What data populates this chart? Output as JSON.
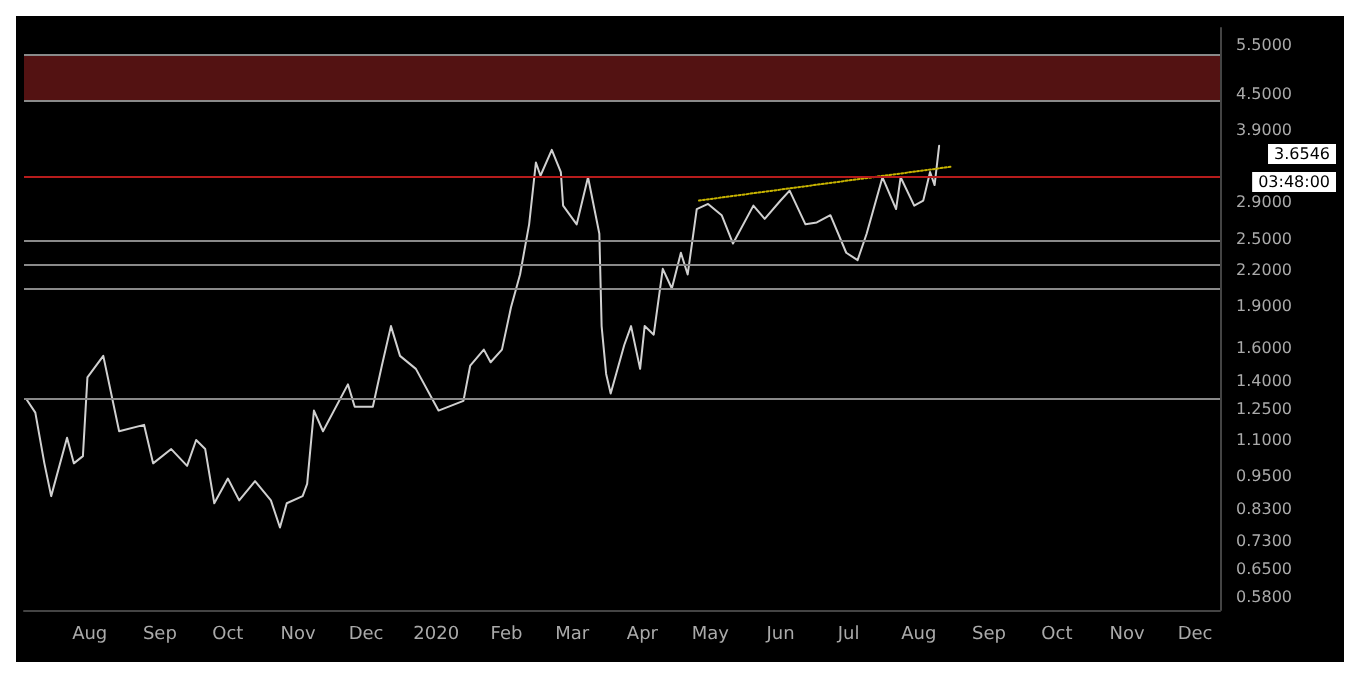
{
  "chart_data": {
    "type": "line",
    "log": "y",
    "grid": false,
    "marker": "none",
    "xlim": [
      "2019-07-03",
      "2020-12-12"
    ],
    "xticks": [
      {
        "value": "2019-08-01",
        "label": "Aug"
      },
      {
        "value": "2019-09-01",
        "label": "Sep"
      },
      {
        "value": "2019-10-01",
        "label": "Oct"
      },
      {
        "value": "2019-11-01",
        "label": "Nov"
      },
      {
        "value": "2019-12-01",
        "label": "Dec"
      },
      {
        "value": "2020-01-01",
        "label": "2020"
      },
      {
        "value": "2020-02-01",
        "label": "Feb"
      },
      {
        "value": "2020-03-01",
        "label": "Mar"
      },
      {
        "value": "2020-04-01",
        "label": "Apr"
      },
      {
        "value": "2020-05-01",
        "label": "May"
      },
      {
        "value": "2020-06-01",
        "label": "Jun"
      },
      {
        "value": "2020-07-01",
        "label": "Jul"
      },
      {
        "value": "2020-08-01",
        "label": "Aug"
      },
      {
        "value": "2020-09-01",
        "label": "Sep"
      },
      {
        "value": "2020-10-01",
        "label": "Oct"
      },
      {
        "value": "2020-11-01",
        "label": "Nov"
      },
      {
        "value": "2020-12-01",
        "label": "Dec"
      }
    ],
    "ylim": [
      0.55,
      5.9
    ],
    "yticks": [
      {
        "value": 0.58,
        "label": "0.5800"
      },
      {
        "value": 0.65,
        "label": "0.6500"
      },
      {
        "value": 0.73,
        "label": "0.7300"
      },
      {
        "value": 0.83,
        "label": "0.8300"
      },
      {
        "value": 0.95,
        "label": "0.9500"
      },
      {
        "value": 1.1,
        "label": "1.1000"
      },
      {
        "value": 1.25,
        "label": "1.2500"
      },
      {
        "value": 1.4,
        "label": "1.4000"
      },
      {
        "value": 1.6,
        "label": "1.6000"
      },
      {
        "value": 1.9,
        "label": "1.9000"
      },
      {
        "value": 2.2,
        "label": "2.2000"
      },
      {
        "value": 2.5,
        "label": "2.5000"
      },
      {
        "value": 2.9,
        "label": "2.9000"
      },
      {
        "value": 3.9,
        "label": "3.9000"
      },
      {
        "value": 4.5,
        "label": "4.5000"
      },
      {
        "value": 5.5,
        "label": "5.5000"
      }
    ],
    "x": [
      "2019-07-04",
      "2019-07-08",
      "2019-07-12",
      "2019-07-15",
      "2019-07-22",
      "2019-07-25",
      "2019-07-29",
      "2019-07-31",
      "2019-08-07",
      "2019-08-14",
      "2019-08-25",
      "2019-08-29",
      "2019-09-06",
      "2019-09-13",
      "2019-09-17",
      "2019-09-21",
      "2019-09-25",
      "2019-10-01",
      "2019-10-06",
      "2019-10-13",
      "2019-10-20",
      "2019-10-24",
      "2019-10-27",
      "2019-11-03",
      "2019-11-05",
      "2019-11-08",
      "2019-11-12",
      "2019-11-23",
      "2019-11-26",
      "2019-12-04",
      "2019-12-08",
      "2019-12-12",
      "2019-12-16",
      "2019-12-23",
      "2020-01-02",
      "2020-01-13",
      "2020-01-16",
      "2020-01-22",
      "2020-01-25",
      "2020-01-30",
      "2020-02-03",
      "2020-02-07",
      "2020-02-11",
      "2020-02-14",
      "2020-02-16",
      "2020-02-21",
      "2020-02-25",
      "2020-02-26",
      "2020-03-03",
      "2020-03-08",
      "2020-03-13",
      "2020-03-14",
      "2020-03-16",
      "2020-03-18",
      "2020-03-24",
      "2020-03-27",
      "2020-03-31",
      "2020-04-02",
      "2020-04-06",
      "2020-04-10",
      "2020-04-14",
      "2020-04-18",
      "2020-04-21",
      "2020-04-25",
      "2020-04-30",
      "2020-05-06",
      "2020-05-11",
      "2020-05-20",
      "2020-05-25",
      "2020-06-01",
      "2020-06-05",
      "2020-06-12",
      "2020-06-17",
      "2020-06-23",
      "2020-06-30",
      "2020-07-05",
      "2020-07-09",
      "2020-07-16",
      "2020-07-22",
      "2020-07-24",
      "2020-07-30",
      "2020-08-03",
      "2020-08-06",
      "2020-08-08",
      "2020-08-10"
    ],
    "series": [
      {
        "color": "#d0d0d0",
        "values": [
          1.3,
          1.23,
          1.0,
          0.875,
          1.11,
          1.0,
          1.03,
          1.42,
          1.55,
          1.14,
          1.17,
          1.0,
          1.06,
          0.99,
          1.1,
          1.06,
          0.85,
          0.94,
          0.86,
          0.93,
          0.86,
          0.77,
          0.85,
          0.875,
          0.92,
          1.24,
          1.14,
          1.38,
          1.26,
          1.26,
          1.49,
          1.75,
          1.55,
          1.47,
          1.24,
          1.29,
          1.49,
          1.59,
          1.51,
          1.59,
          1.89,
          2.16,
          2.65,
          3.41,
          3.23,
          3.59,
          3.28,
          2.86,
          2.65,
          3.21,
          2.55,
          1.75,
          1.44,
          1.33,
          1.62,
          1.75,
          1.47,
          1.75,
          1.69,
          2.21,
          2.04,
          2.36,
          2.16,
          2.82,
          2.88,
          2.75,
          2.45,
          2.86,
          2.71,
          2.92,
          3.04,
          2.65,
          2.67,
          2.75,
          2.36,
          2.29,
          2.55,
          3.21,
          2.82,
          3.21,
          2.86,
          2.92,
          3.28,
          3.11,
          3.65
        ]
      },
      {
        "color": "#c8b400",
        "line_style": "dotted",
        "x": [
          "2020-04-26",
          "2020-08-15"
        ],
        "values": [
          2.92,
          3.35
        ]
      }
    ],
    "ref_lines": [
      {
        "axis": "y",
        "value": 5.3,
        "color": "#8a8a8a"
      },
      {
        "axis": "y",
        "value": 4.38,
        "color": "#8a8a8a"
      },
      {
        "axis": "y",
        "value": 3.21,
        "color": "#b71c1c"
      },
      {
        "axis": "y",
        "value": 2.49,
        "color": "#8a8a8a"
      },
      {
        "axis": "y",
        "value": 2.25,
        "color": "#8a8a8a"
      },
      {
        "axis": "y",
        "value": 2.04,
        "color": "#8a8a8a"
      },
      {
        "axis": "y",
        "value": 1.3,
        "color": "#8a8a8a"
      }
    ],
    "bands": [
      {
        "axis": "y",
        "from": 4.38,
        "to": 5.3,
        "color": "#5c1414"
      }
    ],
    "annotations": [
      "3.6546",
      "03:48:00"
    ]
  }
}
